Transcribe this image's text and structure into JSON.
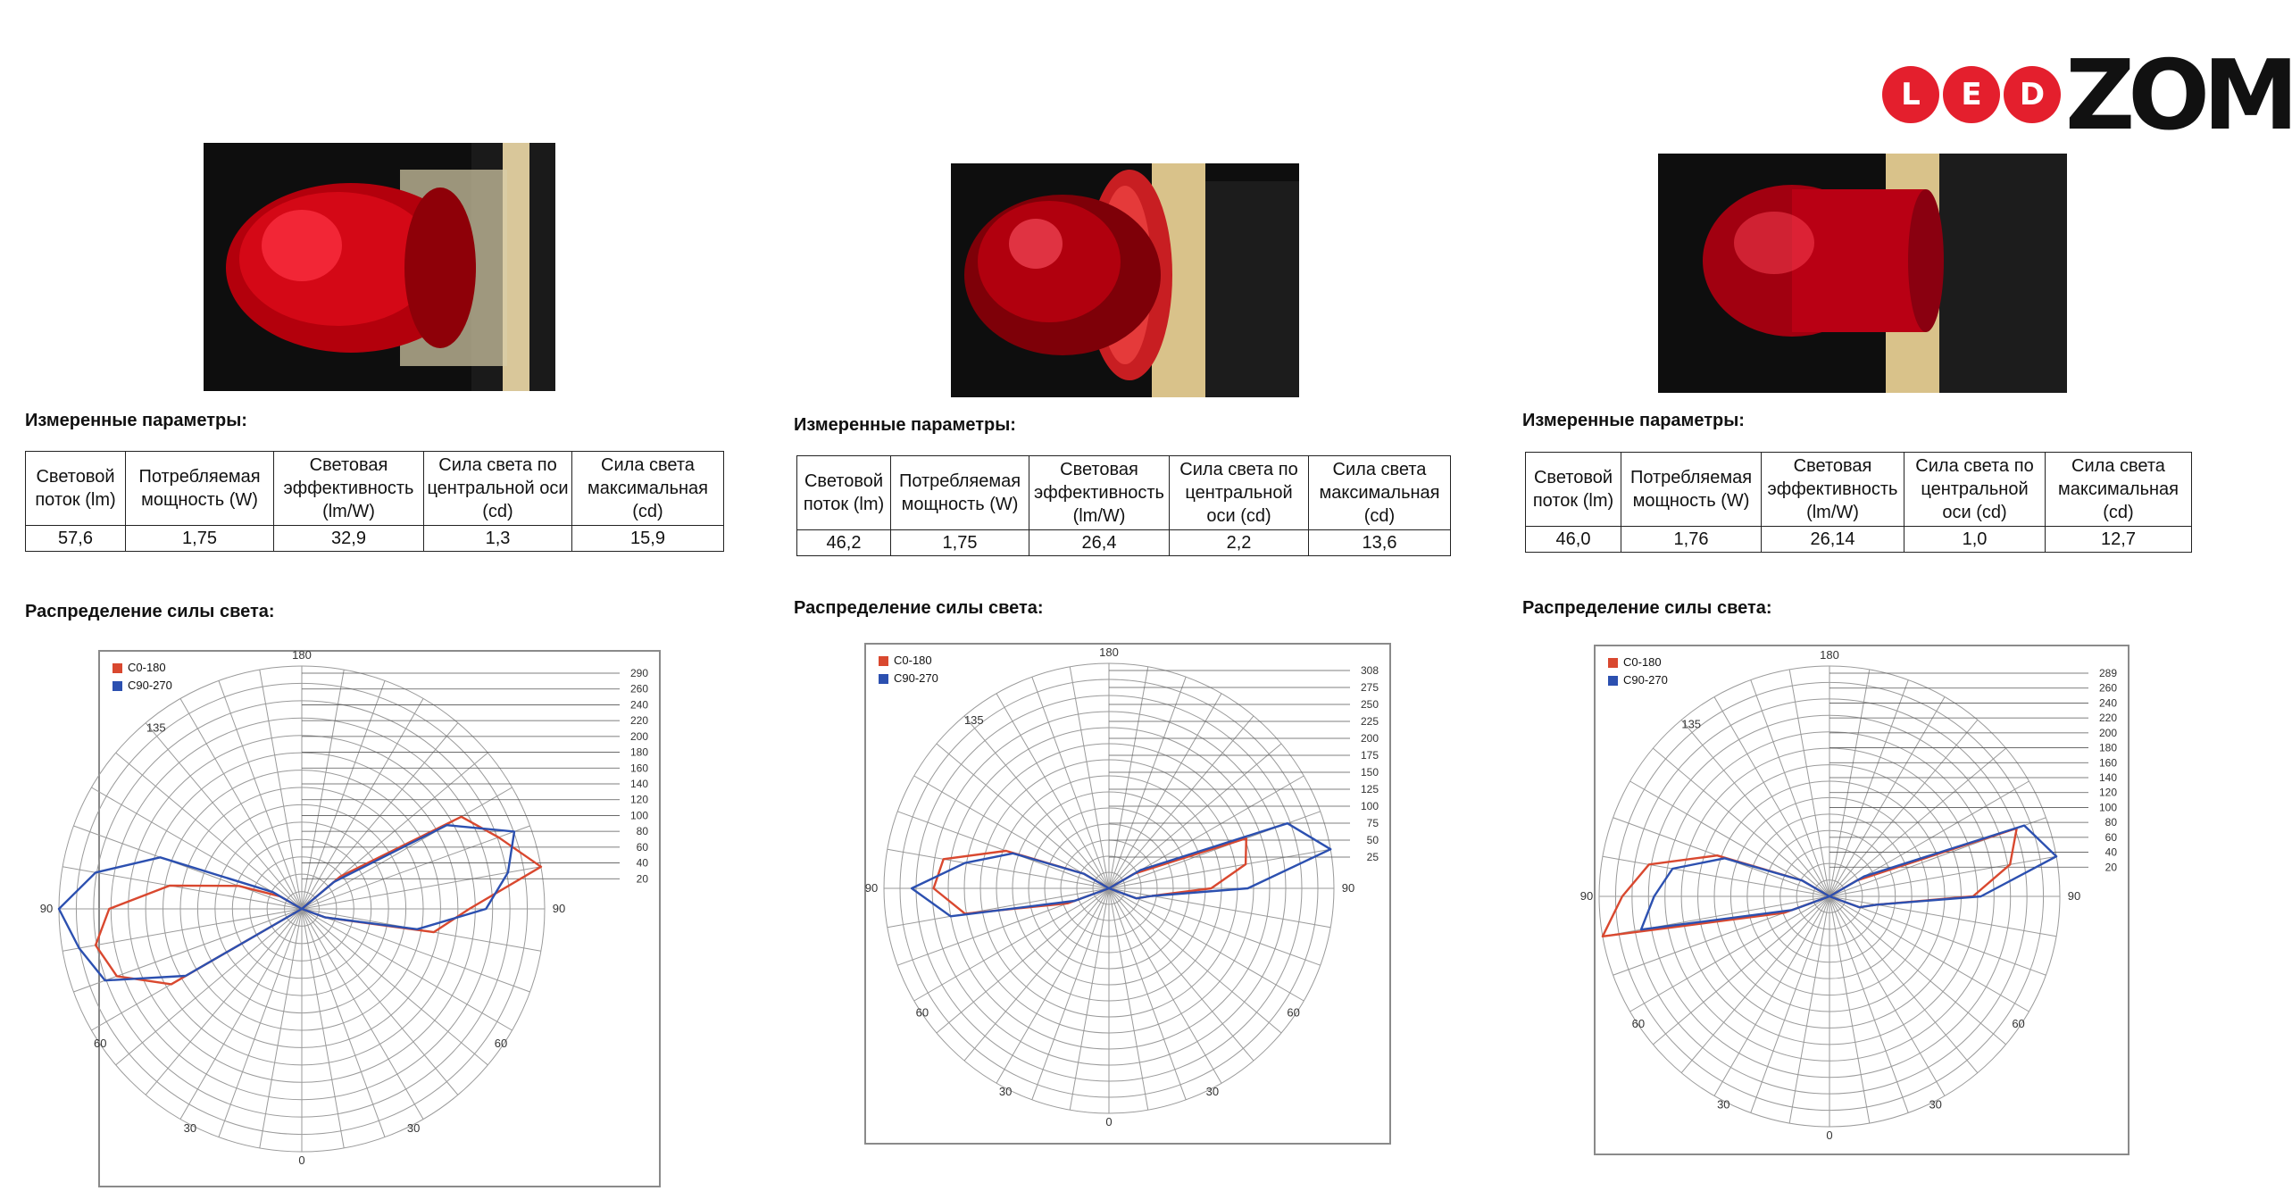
{
  "brand": {
    "dot_letters": [
      "L",
      "E",
      "D"
    ],
    "word": "ZOM",
    "accent": "#e41f2d"
  },
  "panels": [
    {
      "params_title": "Измеренные параметры:",
      "headers": [
        "Световой поток (lm)",
        "Потребляемая мощность (W)",
        "Световая эффективность (lm/W)",
        "Сила света по центральной оси (cd)",
        "Сила света максимальная (cd)"
      ],
      "values": [
        "57,6",
        "1,75",
        "32,9",
        "1,3",
        "15,9"
      ],
      "dist_title": "Распределение силы света:",
      "photo_icon": "red-cylindrical-beacon-lamp"
    },
    {
      "params_title": "Измеренные параметры:",
      "headers": [
        "Световой поток (lm)",
        "Потребляемая мощность (W)",
        "Световая эффективность (lm/W)",
        "Сила света по центральной оси (cd)",
        "Сила света максимальная (cd)"
      ],
      "values": [
        "46,2",
        "1,75",
        "26,4",
        "2,2",
        "13,6"
      ],
      "dist_title": "Распределение силы света:",
      "photo_icon": "red-dome-obstruction-lamp"
    },
    {
      "params_title": "Измеренные параметры:",
      "headers": [
        "Световой поток (lm)",
        "Потребляемая мощность (W)",
        "Световая эффективность (lm/W)",
        "Сила света по центральной оси (cd)",
        "Сила света максимальная (cd)"
      ],
      "values": [
        "46,0",
        "1,76",
        "26,14",
        "1,0",
        "12,7"
      ],
      "dist_title": "Распределение силы света:",
      "photo_icon": "red-dome-beacon-lamp"
    }
  ],
  "chart_data": [
    {
      "type": "polar",
      "angle_labels": [
        "180",
        "135",
        "90",
        "90",
        "60",
        "60",
        "30",
        "30",
        "0"
      ],
      "radial_ticks": [
        "290",
        "260",
        "240",
        "220",
        "200",
        "180",
        "160",
        "140",
        "120",
        "100",
        "80",
        "60",
        "40",
        "20"
      ],
      "rmax": 290,
      "series": [
        {
          "name": "C0-180",
          "color": "#d9482f",
          "left": [
            [
              90,
              230
            ],
            [
              80,
              250
            ],
            [
              70,
              235
            ],
            [
              60,
              180
            ],
            [
              100,
              160
            ],
            [
              110,
              80
            ],
            [
              120,
              30
            ]
          ],
          "right": [
            [
              70,
              30
            ],
            [
              80,
              160
            ],
            [
              90,
              200
            ],
            [
              100,
              290
            ],
            [
              110,
              250
            ],
            [
              120,
              220
            ],
            [
              130,
              60
            ]
          ]
        },
        {
          "name": "C90-270",
          "color": "#2c50b0",
          "left": [
            [
              90,
              290
            ],
            [
              80,
              270
            ],
            [
              70,
              250
            ],
            [
              60,
              160
            ],
            [
              100,
              250
            ],
            [
              110,
              180
            ],
            [
              120,
              40
            ]
          ],
          "right": [
            [
              70,
              30
            ],
            [
              80,
              140
            ],
            [
              90,
              220
            ],
            [
              100,
              250
            ],
            [
              110,
              270
            ],
            [
              120,
              200
            ],
            [
              130,
              50
            ]
          ]
        }
      ]
    },
    {
      "type": "polar",
      "angle_labels": [
        "180",
        "135",
        "90",
        "90",
        "60",
        "60",
        "30",
        "30",
        "0"
      ],
      "radial_ticks": [
        "308",
        "275",
        "250",
        "225",
        "200",
        "175",
        "150",
        "125",
        "100",
        "75",
        "50",
        "25"
      ],
      "rmax": 308,
      "series": [
        {
          "name": "C0-180",
          "color": "#d9482f",
          "left": [
            [
              90,
              240
            ],
            [
              80,
              200
            ],
            [
              100,
              230
            ],
            [
              110,
              150
            ],
            [
              70,
              60
            ],
            [
              120,
              40
            ]
          ],
          "right": [
            [
              80,
              60
            ],
            [
              90,
              140
            ],
            [
              100,
              190
            ],
            [
              110,
              200
            ],
            [
              70,
              40
            ],
            [
              120,
              40
            ]
          ]
        },
        {
          "name": "C90-270",
          "color": "#2c50b0",
          "left": [
            [
              90,
              270
            ],
            [
              80,
              220
            ],
            [
              100,
              200
            ],
            [
              110,
              140
            ],
            [
              70,
              50
            ],
            [
              120,
              40
            ]
          ],
          "right": [
            [
              80,
              60
            ],
            [
              90,
              190
            ],
            [
              100,
              308
            ],
            [
              110,
              260
            ],
            [
              70,
              40
            ],
            [
              120,
              50
            ]
          ]
        }
      ]
    },
    {
      "type": "polar",
      "angle_labels": [
        "180",
        "135",
        "90",
        "90",
        "60",
        "60",
        "30",
        "30",
        "0"
      ],
      "radial_ticks": [
        "289",
        "260",
        "240",
        "220",
        "200",
        "180",
        "160",
        "140",
        "120",
        "100",
        "80",
        "60",
        "40",
        "20"
      ],
      "rmax": 289,
      "series": [
        {
          "name": "C0-180",
          "color": "#d9482f",
          "left": [
            [
              90,
              260
            ],
            [
              80,
              289
            ],
            [
              100,
              230
            ],
            [
              110,
              150
            ],
            [
              70,
              60
            ],
            [
              120,
              40
            ]
          ],
          "right": [
            [
              80,
              60
            ],
            [
              90,
              180
            ],
            [
              100,
              230
            ],
            [
              110,
              250
            ],
            [
              70,
              40
            ],
            [
              120,
              40
            ]
          ]
        },
        {
          "name": "C90-270",
          "color": "#2c50b0",
          "left": [
            [
              90,
              220
            ],
            [
              80,
              240
            ],
            [
              100,
              200
            ],
            [
              110,
              140
            ],
            [
              70,
              50
            ],
            [
              120,
              40
            ]
          ],
          "right": [
            [
              80,
              60
            ],
            [
              90,
              190
            ],
            [
              100,
              289
            ],
            [
              110,
              260
            ],
            [
              70,
              40
            ],
            [
              120,
              50
            ]
          ]
        }
      ]
    }
  ]
}
